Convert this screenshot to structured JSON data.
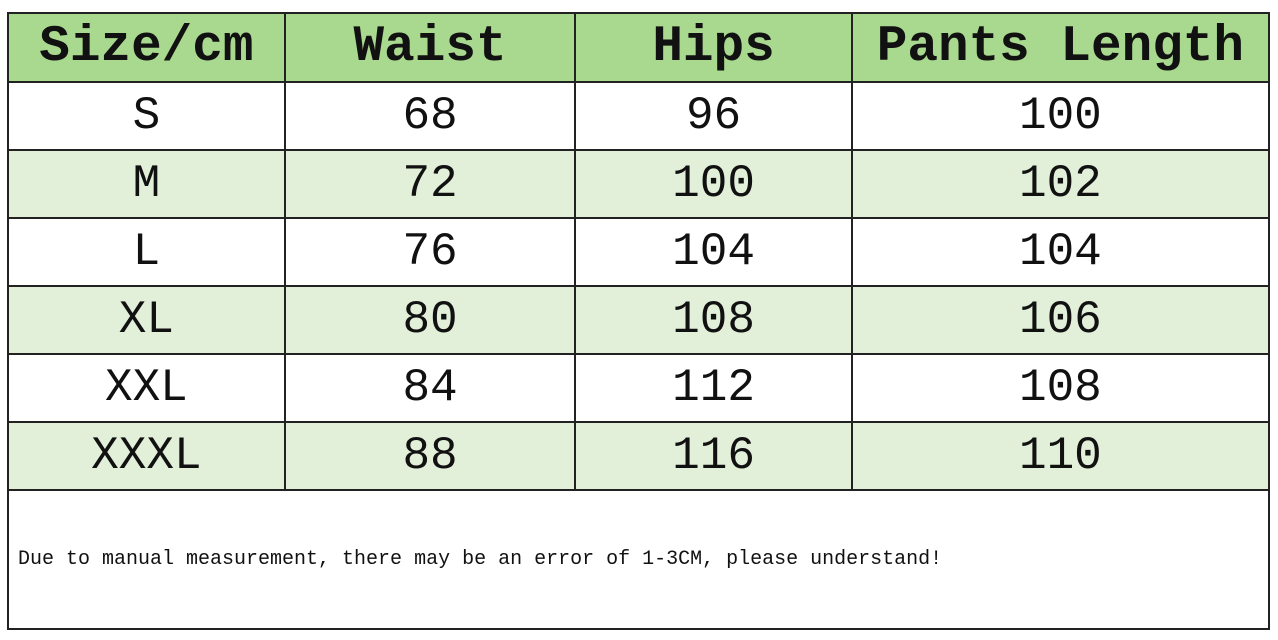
{
  "table": {
    "headers": [
      "Size/cm",
      "Waist",
      "Hips",
      "Pants Length"
    ],
    "rows": [
      [
        "S",
        "68",
        "96",
        "100"
      ],
      [
        "M",
        "72",
        "100",
        "102"
      ],
      [
        "L",
        "76",
        "104",
        "104"
      ],
      [
        "XL",
        "80",
        "108",
        "106"
      ],
      [
        "XXL",
        "84",
        "112",
        "108"
      ],
      [
        "XXXL",
        "88",
        "116",
        "110"
      ]
    ],
    "note": "Due to manual measurement, there may be an error of 1-3CM, please understand!"
  },
  "colors": {
    "header": "#a9d98f",
    "alt_row": "#e2f0d9",
    "border": "#222222"
  }
}
